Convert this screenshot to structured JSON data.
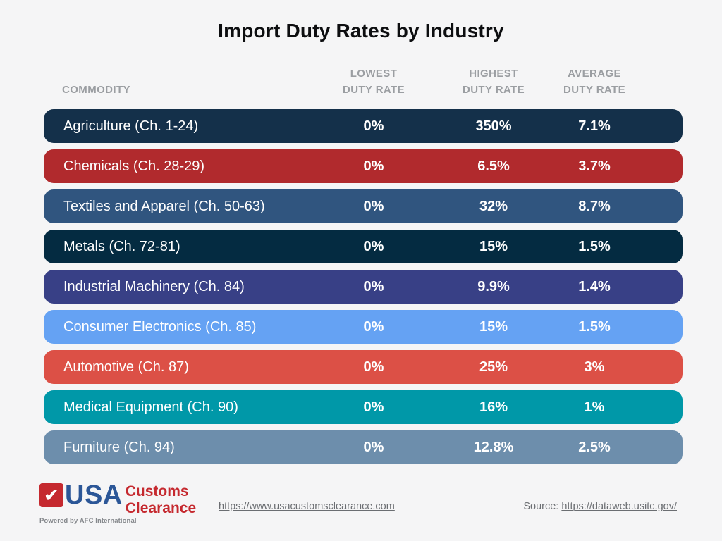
{
  "title": "Import Duty Rates by Industry",
  "table": {
    "headers": {
      "commodity": "COMMODITY",
      "lowest": "LOWEST\nDUTY RATE",
      "highest": "HIGHEST\nDUTY RATE",
      "average": "AVERAGE\nDUTY RATE"
    },
    "rows": [
      {
        "commodity": "Agriculture (Ch. 1-24)",
        "lowest": "0%",
        "highest": "350%",
        "average": "7.1%",
        "color": "#14304a"
      },
      {
        "commodity": "Chemicals (Ch. 28-29)",
        "lowest": "0%",
        "highest": "6.5%",
        "average": "3.7%",
        "color": "#b12a2d"
      },
      {
        "commodity": "Textiles and Apparel (Ch. 50-63)",
        "lowest": "0%",
        "highest": "32%",
        "average": "8.7%",
        "color": "#30557f"
      },
      {
        "commodity": "Metals (Ch. 72-81)",
        "lowest": "0%",
        "highest": "15%",
        "average": "1.5%",
        "color": "#042b41"
      },
      {
        "commodity": "Industrial Machinery (Ch. 84)",
        "lowest": "0%",
        "highest": "9.9%",
        "average": "1.4%",
        "color": "#384086"
      },
      {
        "commodity": "Consumer Electronics (Ch. 85)",
        "lowest": "0%",
        "highest": "15%",
        "average": "1.5%",
        "color": "#65a2f3"
      },
      {
        "commodity": "Automotive (Ch. 87)",
        "lowest": "0%",
        "highest": "25%",
        "average": "3%",
        "color": "#dc5046"
      },
      {
        "commodity": "Medical Equipment (Ch. 90)",
        "lowest": "0%",
        "highest": "16%",
        "average": "1%",
        "color": "#0098a8"
      },
      {
        "commodity": "Furniture (Ch. 94)",
        "lowest": "0%",
        "highest": "12.8%",
        "average": "2.5%",
        "color": "#6d8eac"
      }
    ]
  },
  "chart_data": {
    "type": "table",
    "title": "Import Duty Rates by Industry",
    "columns": [
      "COMMODITY",
      "LOWEST DUTY RATE",
      "HIGHEST DUTY RATE",
      "AVERAGE DUTY RATE"
    ],
    "rows": [
      [
        "Agriculture (Ch. 1-24)",
        "0%",
        "350%",
        "7.1%"
      ],
      [
        "Chemicals (Ch. 28-29)",
        "0%",
        "6.5%",
        "3.7%"
      ],
      [
        "Textiles and Apparel (Ch. 50-63)",
        "0%",
        "32%",
        "8.7%"
      ],
      [
        "Metals (Ch. 72-81)",
        "0%",
        "15%",
        "1.5%"
      ],
      [
        "Industrial Machinery (Ch. 84)",
        "0%",
        "9.9%",
        "1.4%"
      ],
      [
        "Consumer Electronics (Ch. 85)",
        "0%",
        "15%",
        "1.5%"
      ],
      [
        "Automotive (Ch. 87)",
        "0%",
        "25%",
        "3%"
      ],
      [
        "Medical Equipment (Ch. 90)",
        "0%",
        "16%",
        "1%"
      ],
      [
        "Furniture (Ch. 94)",
        "0%",
        "12.8%",
        "2.5%"
      ]
    ]
  },
  "footer": {
    "logo": {
      "check_icon": "✔",
      "usa": "USA",
      "customs": "Customs",
      "clearance": "Clearance",
      "powered_by": "Powered by AFC International",
      "brand_blue": "#2b5697",
      "brand_red": "#c5292f"
    },
    "site_link": "https://www.usacustomsclearance.com",
    "source_label": "Source:",
    "source_link": "https://dataweb.usitc.gov/"
  }
}
